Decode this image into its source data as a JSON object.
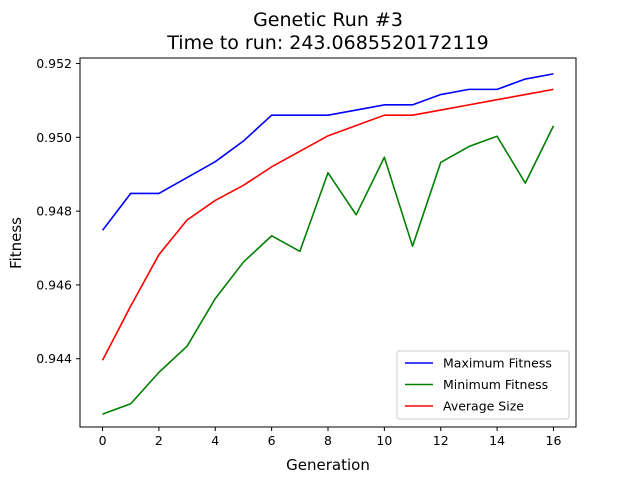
{
  "chart_data": {
    "type": "line",
    "title": "Genetic Run #3",
    "subtitle": "Time to run: 243.0685520172119",
    "xlabel": "Generation",
    "ylabel": "Fitness",
    "xlim": [
      -0.8,
      16.8
    ],
    "ylim": [
      0.94215,
      0.95215
    ],
    "xticks": [
      0,
      2,
      4,
      6,
      8,
      10,
      12,
      14,
      16
    ],
    "xtick_labels": [
      "0",
      "2",
      "4",
      "6",
      "8",
      "10",
      "12",
      "14",
      "16"
    ],
    "yticks": [
      0.944,
      0.946,
      0.948,
      0.95,
      0.952
    ],
    "ytick_labels": [
      "0.944",
      "0.946",
      "0.948",
      "0.950",
      "0.952"
    ],
    "grid": false,
    "legend_position": "lower-right",
    "x": [
      0,
      1,
      2,
      3,
      4,
      5,
      6,
      7,
      8,
      9,
      10,
      11,
      12,
      13,
      14,
      15,
      16
    ],
    "series": [
      {
        "name": "Maximum Fitness",
        "color": "#0000ff",
        "values": [
          0.94748,
          0.94848,
          0.94848,
          0.94891,
          0.94934,
          0.9499,
          0.9506,
          0.9506,
          0.9506,
          0.95074,
          0.95088,
          0.95088,
          0.95116,
          0.9513,
          0.9513,
          0.95158,
          0.95172
        ]
      },
      {
        "name": "Minimum Fitness",
        "color": "#008000",
        "values": [
          0.9425,
          0.94278,
          0.94363,
          0.94434,
          0.94563,
          0.94662,
          0.94733,
          0.94691,
          0.94904,
          0.9479,
          0.94946,
          0.94705,
          0.94932,
          0.94975,
          0.95003,
          0.94876,
          0.95031
        ]
      },
      {
        "name": "Average Size",
        "color": "#ff0000",
        "values": [
          0.94396,
          0.94543,
          0.94682,
          0.94776,
          0.94829,
          0.9487,
          0.9492,
          0.94962,
          0.95004,
          0.95032,
          0.9506,
          0.9506,
          0.95074,
          0.95088,
          0.95102,
          0.95116,
          0.9513
        ]
      }
    ]
  }
}
